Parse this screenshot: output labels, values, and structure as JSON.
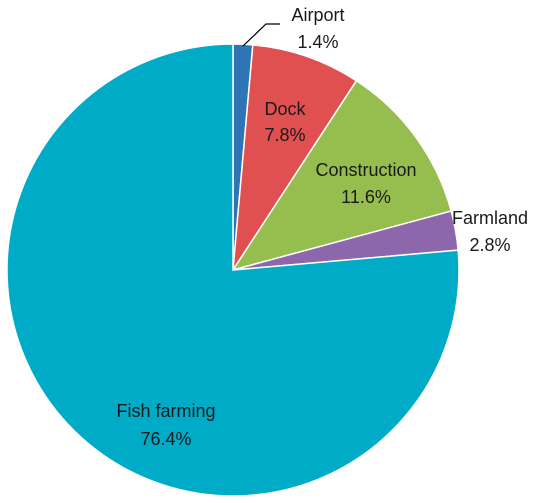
{
  "chart_data": {
    "type": "pie",
    "title": "",
    "start_angle_deg": 0,
    "direction": "clockwise",
    "legend": "none",
    "slices": [
      {
        "label": "Airport",
        "value": 1.4,
        "display": "1.4%",
        "color": "#2e75b6"
      },
      {
        "label": "Dock",
        "value": 7.8,
        "display": "7.8%",
        "color": "#e05050"
      },
      {
        "label": "Construction",
        "value": 11.6,
        "display": "11.6%",
        "color": "#96be4e"
      },
      {
        "label": "Farmland",
        "value": 2.8,
        "display": "2.8%",
        "color": "#8c67ab"
      },
      {
        "label": "Fish farming",
        "value": 76.4,
        "display": "76.4%",
        "color": "#00abc8"
      }
    ]
  }
}
